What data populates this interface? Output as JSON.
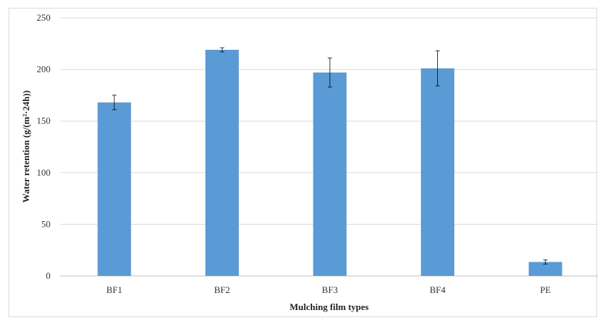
{
  "chart_data": {
    "type": "bar",
    "title": "",
    "xlabel": "Mulching film types",
    "ylabel": "Water retention (g/(m²·24h))",
    "categories": [
      "BF1",
      "BF2",
      "BF3",
      "BF4",
      "PE"
    ],
    "values": [
      168,
      219,
      197,
      201,
      13.5
    ],
    "errors": [
      7,
      2,
      14,
      17,
      2
    ],
    "ylim": [
      0,
      250
    ],
    "yticks": [
      0,
      50,
      100,
      150,
      200,
      250
    ],
    "grid": true,
    "legend": "none",
    "colors": {
      "bar": "#5b9bd5",
      "grid": "#d9d9d9",
      "axis": "#bfbfbf",
      "error": "#000000"
    }
  }
}
